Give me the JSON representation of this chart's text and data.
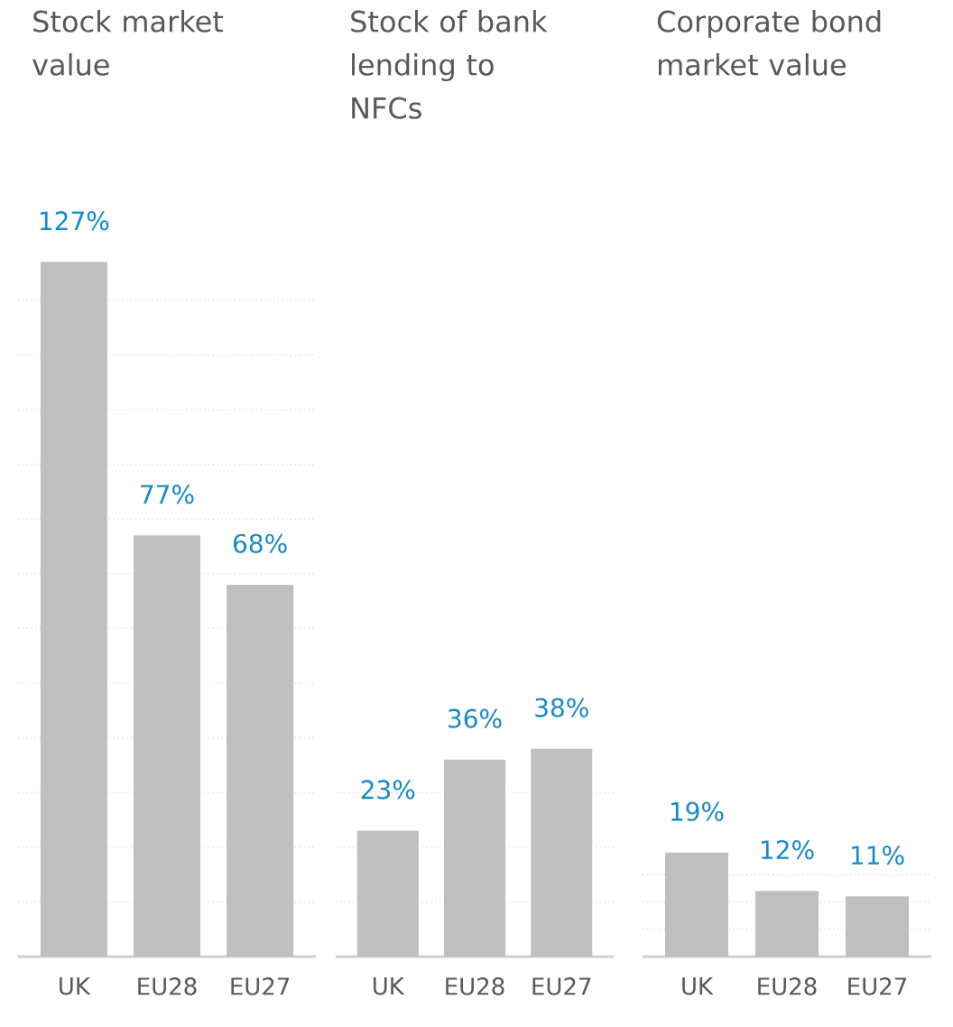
{
  "chart_data": [
    {
      "type": "bar",
      "title": "Stock market value",
      "categories": [
        "UK",
        "EU28",
        "EU27"
      ],
      "values": [
        127,
        77,
        68
      ],
      "value_labels": [
        "127%",
        "77%",
        "68%"
      ],
      "color": "#bfbfbf",
      "grid": "y",
      "tick_labels": "x"
    },
    {
      "type": "bar",
      "title": "Stock of bank lending to NFCs",
      "categories": [
        "UK",
        "EU28",
        "EU27"
      ],
      "values": [
        23,
        36,
        38
      ],
      "value_labels": [
        "23%",
        "36%",
        "38%"
      ],
      "color": "#bfbfbf",
      "grid": "y",
      "tick_labels": "x"
    },
    {
      "type": "bar",
      "title": "Corporate bond market value",
      "categories": [
        "UK",
        "EU28",
        "EU27"
      ],
      "values": [
        19,
        12,
        11
      ],
      "value_labels": [
        "19%",
        "12%",
        "11%"
      ],
      "color": "#bfbfbf",
      "grid": "y",
      "tick_labels": "x"
    }
  ]
}
